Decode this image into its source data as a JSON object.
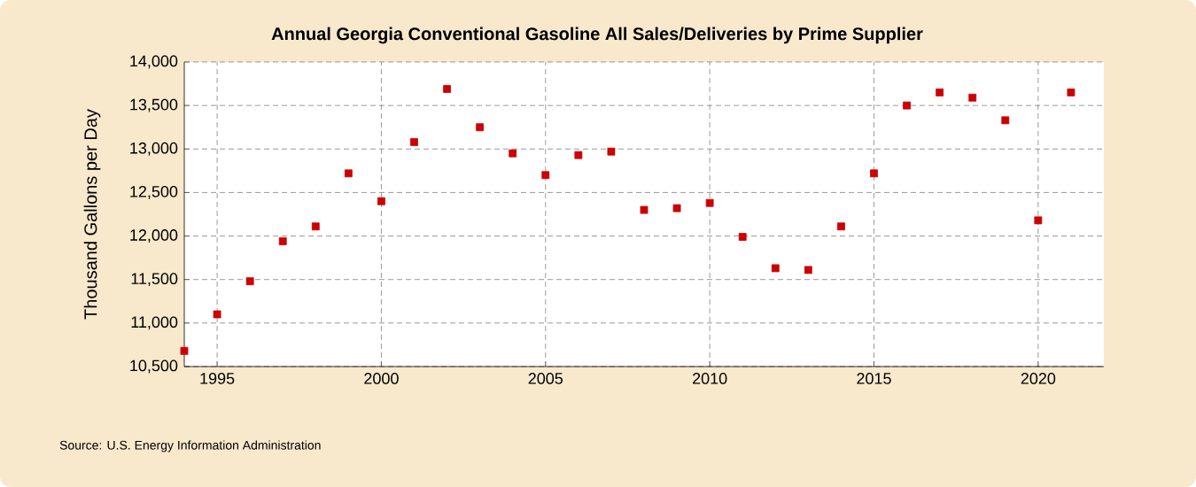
{
  "chart_data": {
    "type": "scatter",
    "title": "Annual Georgia Conventional Gasoline All Sales/Deliveries by Prime Supplier",
    "ylabel": "Thousand Gallons per Day",
    "x": [
      1994,
      1995,
      1996,
      1997,
      1998,
      1999,
      2000,
      2001,
      2002,
      2003,
      2004,
      2005,
      2006,
      2007,
      2008,
      2009,
      2010,
      2011,
      2012,
      2013,
      2014,
      2015,
      2016,
      2017,
      2018,
      2019,
      2020,
      2021
    ],
    "values": [
      10680,
      11100,
      11480,
      11940,
      12110,
      12720,
      12400,
      13080,
      13690,
      13250,
      12950,
      12700,
      12930,
      12970,
      12300,
      12320,
      12380,
      11990,
      11630,
      11610,
      12110,
      12720,
      13500,
      13650,
      13590,
      13330,
      12180,
      13650
    ],
    "color": "#cc0000",
    "marker": "square",
    "xlim": [
      1994,
      2022
    ],
    "xticks": [
      1995,
      2000,
      2005,
      2010,
      2015,
      2020
    ],
    "ylim": [
      10500,
      14000
    ],
    "yticks": [
      {
        "value": 10500,
        "label": "10,500"
      },
      {
        "value": 11000,
        "label": "11,000"
      },
      {
        "value": 11500,
        "label": "11,500"
      },
      {
        "value": 12000,
        "label": "12,000"
      },
      {
        "value": 12500,
        "label": "12,500"
      },
      {
        "value": 13000,
        "label": "13,000"
      },
      {
        "value": 13500,
        "label": "13,500"
      },
      {
        "value": 14000,
        "label": "14,000"
      }
    ],
    "grid": true,
    "annotations": [
      "Source: U.S. Energy Information Administration"
    ]
  }
}
